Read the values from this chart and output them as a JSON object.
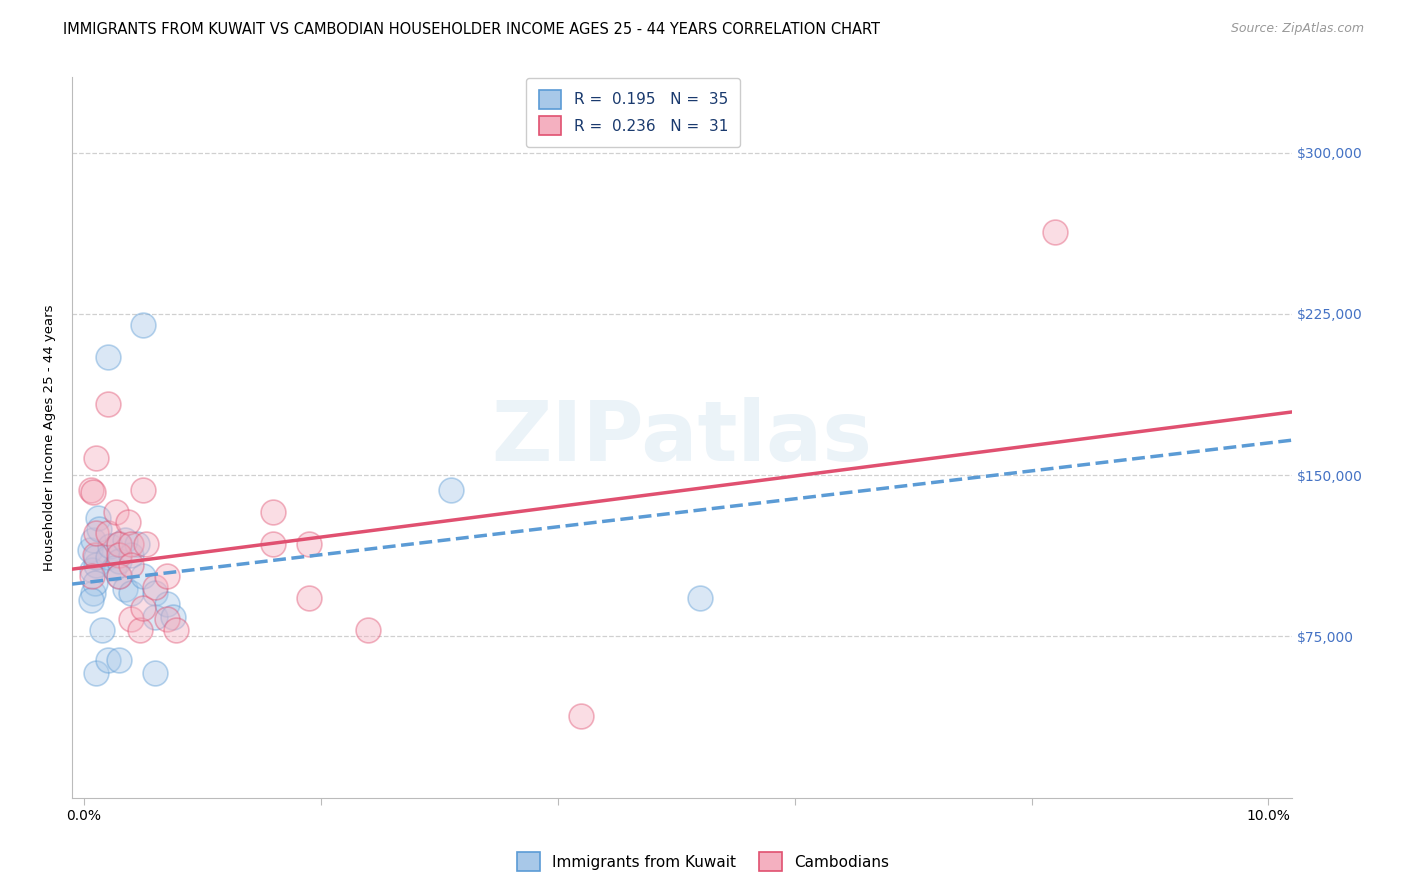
{
  "title": "IMMIGRANTS FROM KUWAIT VS CAMBODIAN HOUSEHOLDER INCOME AGES 25 - 44 YEARS CORRELATION CHART",
  "source": "Source: ZipAtlas.com",
  "ylabel": "Householder Income Ages 25 - 44 years",
  "y_tick_labels": [
    "$75,000",
    "$150,000",
    "$225,000",
    "$300,000"
  ],
  "y_tick_values": [
    75000,
    150000,
    225000,
    300000
  ],
  "xlim": [
    -0.001,
    0.102
  ],
  "ylim": [
    0,
    335000
  ],
  "legend_series": [
    {
      "label": "R =  0.195   N =  35",
      "color": "#a8c8e8",
      "edge": "#5b9bd5"
    },
    {
      "label": "R =  0.236   N =  31",
      "color": "#f4b0c0",
      "edge": "#e05070"
    }
  ],
  "bottom_legend": [
    {
      "label": "Immigrants from Kuwait",
      "color": "#a8c8e8",
      "edge": "#5b9bd5"
    },
    {
      "label": "Cambodians",
      "color": "#f4b0c0",
      "edge": "#e05070"
    }
  ],
  "watermark": "ZIPatlas",
  "kuwait_points": [
    [
      0.0005,
      115000
    ],
    [
      0.0007,
      106000
    ],
    [
      0.0008,
      120000
    ],
    [
      0.0008,
      95000
    ],
    [
      0.001,
      108000
    ],
    [
      0.0009,
      100000
    ],
    [
      0.001,
      112000
    ],
    [
      0.0006,
      92000
    ],
    [
      0.0012,
      130000
    ],
    [
      0.0013,
      125000
    ],
    [
      0.002,
      205000
    ],
    [
      0.002,
      112000
    ],
    [
      0.0022,
      117000
    ],
    [
      0.0025,
      107000
    ],
    [
      0.003,
      118000
    ],
    [
      0.003,
      110000
    ],
    [
      0.003,
      103000
    ],
    [
      0.0035,
      120000
    ],
    [
      0.0035,
      97000
    ],
    [
      0.004,
      113000
    ],
    [
      0.004,
      95000
    ],
    [
      0.0045,
      118000
    ],
    [
      0.005,
      103000
    ],
    [
      0.005,
      220000
    ],
    [
      0.006,
      95000
    ],
    [
      0.006,
      84000
    ],
    [
      0.007,
      90000
    ],
    [
      0.0075,
      84000
    ],
    [
      0.052,
      93000
    ],
    [
      0.001,
      58000
    ],
    [
      0.002,
      64000
    ],
    [
      0.003,
      64000
    ],
    [
      0.006,
      58000
    ],
    [
      0.031,
      143000
    ],
    [
      0.0015,
      78000
    ]
  ],
  "cambodian_points": [
    [
      0.0006,
      143000
    ],
    [
      0.0008,
      142000
    ],
    [
      0.001,
      158000
    ],
    [
      0.0009,
      113000
    ],
    [
      0.001,
      123000
    ],
    [
      0.0007,
      103000
    ],
    [
      0.002,
      183000
    ],
    [
      0.002,
      123000
    ],
    [
      0.0027,
      133000
    ],
    [
      0.003,
      118000
    ],
    [
      0.003,
      113000
    ],
    [
      0.003,
      103000
    ],
    [
      0.0037,
      128000
    ],
    [
      0.004,
      118000
    ],
    [
      0.004,
      108000
    ],
    [
      0.004,
      83000
    ],
    [
      0.0047,
      78000
    ],
    [
      0.005,
      143000
    ],
    [
      0.0052,
      118000
    ],
    [
      0.005,
      88000
    ],
    [
      0.006,
      98000
    ],
    [
      0.007,
      103000
    ],
    [
      0.007,
      83000
    ],
    [
      0.0078,
      78000
    ],
    [
      0.016,
      133000
    ],
    [
      0.016,
      118000
    ],
    [
      0.019,
      118000
    ],
    [
      0.019,
      93000
    ],
    [
      0.042,
      38000
    ],
    [
      0.082,
      263000
    ],
    [
      0.024,
      78000
    ]
  ],
  "kuwait_line": {
    "x0": 0.0,
    "y0": 100000,
    "x1": 0.1,
    "y1": 165000
  },
  "cambodian_line": {
    "x0": 0.0,
    "y0": 107000,
    "x1": 0.1,
    "y1": 178000
  },
  "point_size": 320,
  "point_alpha": 0.42,
  "kuwait_color": "#a8c8e8",
  "cambodian_color": "#f4b0c0",
  "kuwait_line_color": "#5b9bd5",
  "cambodian_line_color": "#e05070",
  "background_color": "#ffffff",
  "grid_color": "#d0d0d0",
  "title_fontsize": 10.5,
  "axis_label_fontsize": 9.5,
  "tick_fontsize": 10,
  "right_tick_color": "#4472c4"
}
